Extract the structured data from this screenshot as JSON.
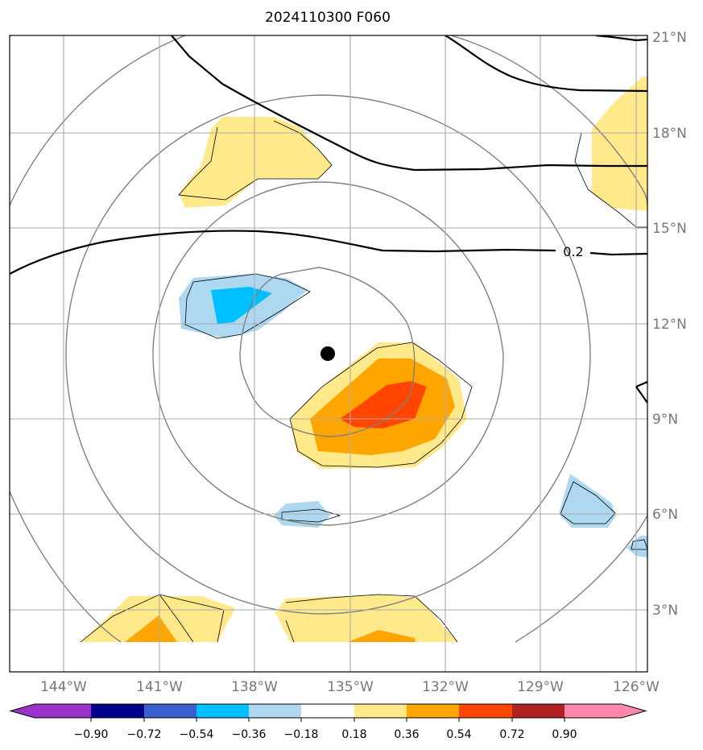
{
  "title": "2024110300 F060",
  "map": {
    "lon_labels": [
      "144°W",
      "141°W",
      "138°W",
      "135°W",
      "132°W",
      "129°W",
      "126°W"
    ],
    "lat_labels": [
      "21°N",
      "18°N",
      "15°N",
      "12°N",
      "9°N",
      "6°N",
      "3°N"
    ],
    "contour_label": "0.2",
    "storm_center": "filled-circle-marker"
  },
  "colorbar": {
    "ticks": [
      "−0.90",
      "−0.72",
      "−0.54",
      "−0.36",
      "−0.18",
      "0.18",
      "0.36",
      "0.54",
      "0.72",
      "0.90"
    ],
    "colors": [
      "#9933cc",
      "#00008b",
      "#3a5fcd",
      "#00bfff",
      "#add8f0",
      "#ffffff",
      "#ffe98a",
      "#ffa500",
      "#ff4500",
      "#b22222",
      "#ff88aa"
    ]
  },
  "colors": {
    "gridline": "#aaaaaa",
    "gray_contour": "#808080",
    "black_contour": "#000000"
  }
}
